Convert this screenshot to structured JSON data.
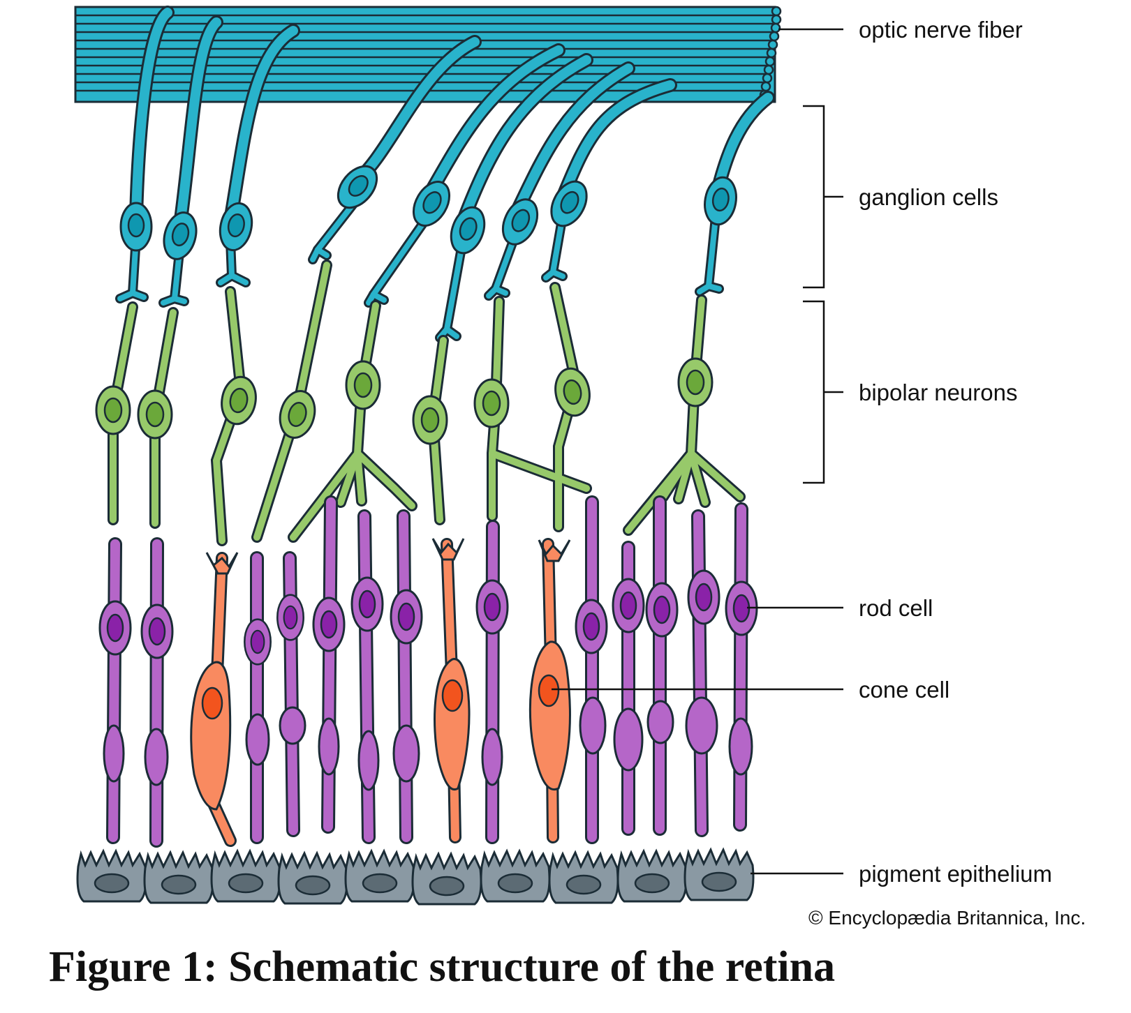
{
  "figure": {
    "caption": "Figure 1: Schematic structure of the retina",
    "credit": "© Encyclopædia Britannica, Inc."
  },
  "labels": {
    "optic_nerve_fiber": "optic nerve fiber",
    "ganglion_cells": "ganglion cells",
    "bipolar_neurons": "bipolar neurons",
    "rod_cell": "rod cell",
    "cone_cell": "cone cell",
    "pigment_epithelium": "pigment epithelium"
  },
  "colors": {
    "ganglion": "#29b3cb",
    "ganglion_nucleus": "#0f97b0",
    "bipolar": "#97c96a",
    "bipolar_nucleus": "#6ba83a",
    "rod": "#b566c8",
    "rod_nucleus": "#8a22a8",
    "cone": "#f98a60",
    "cone_nucleus": "#f2541e",
    "epithelium": "#8a99a3",
    "epithelium_nucleus": "#5c6b74",
    "outline": "#1b2c36"
  }
}
